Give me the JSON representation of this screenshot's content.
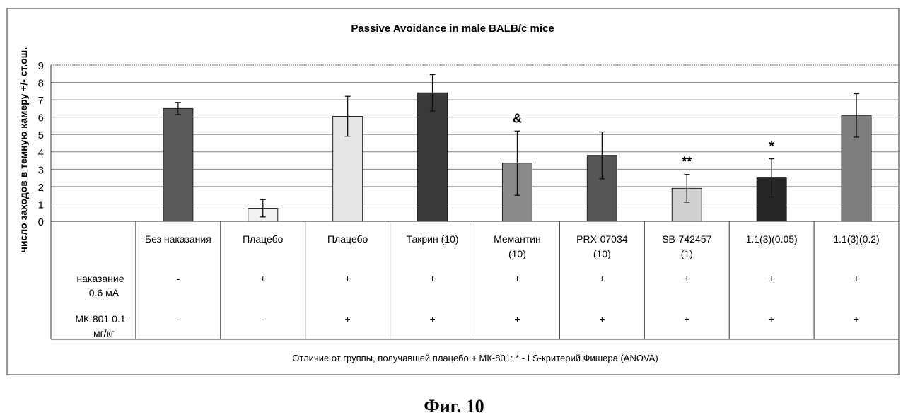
{
  "chart_data": {
    "type": "bar",
    "title": "Passive Avoidance in male BALB/c mice",
    "ylabel": "число заходов в темную камеру +/- ст.ош.",
    "ylim": [
      0,
      9
    ],
    "yticks": [
      0,
      1,
      2,
      3,
      4,
      5,
      6,
      7,
      8,
      9
    ],
    "grid": true,
    "categories": [
      "Без наказания",
      "Плацебо",
      "Плацебо",
      "Такрин (10)",
      "Мемантин (10)",
      "PRX-07034 (10)",
      "SB-742457 (1)",
      "1.1(3)(0.05)",
      "1.1(3)(0.2)"
    ],
    "values": [
      6.5,
      0.75,
      6.05,
      7.4,
      3.35,
      3.8,
      1.9,
      2.5,
      6.1
    ],
    "errors": [
      0.35,
      0.5,
      1.15,
      1.05,
      1.85,
      1.35,
      0.8,
      1.1,
      1.25
    ],
    "annotations": [
      "",
      "",
      "",
      "",
      "&",
      "",
      "**",
      "*",
      ""
    ],
    "colors": [
      "#5a5a5a",
      "#f2f2f2",
      "#e6e6e6",
      "#3a3a3a",
      "#8a8a8a",
      "#555555",
      "#cfcfcf",
      "#262626",
      "#7e7e7e"
    ],
    "table_rows": [
      {
        "label": "наказание 0.6 мА",
        "values": [
          "-",
          "+",
          "+",
          "+",
          "+",
          "+",
          "+",
          "+",
          "+"
        ]
      },
      {
        "label": "МК-801  0.1 мг/кг",
        "values": [
          "-",
          "-",
          "+",
          "+",
          "+",
          "+",
          "+",
          "+",
          "+"
        ]
      }
    ],
    "footnote": "Отличие от группы, получавшей плацебо + МК-801: * - LS-критерий Фишера (ANOVA)"
  },
  "caption": "Фиг. 10"
}
